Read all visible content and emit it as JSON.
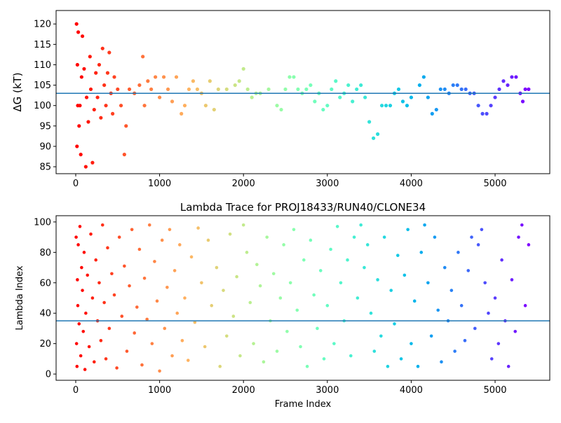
{
  "chart_data": [
    {
      "type": "scatter",
      "ylabel": "ΔG (kT)",
      "colormap": "rainbow_r",
      "xlim": [
        -234,
        5652
      ],
      "ylim": [
        83.3,
        123.3
      ],
      "xticks": [
        0,
        1000,
        2000,
        3000,
        4000,
        5000
      ],
      "yticks": [
        85,
        90,
        95,
        100,
        105,
        110,
        115,
        120
      ],
      "hline": {
        "value": 103,
        "color": "#1f77b4"
      },
      "x": [
        10,
        15,
        20,
        25,
        30,
        40,
        50,
        60,
        70,
        80,
        100,
        120,
        130,
        150,
        170,
        180,
        200,
        220,
        240,
        260,
        280,
        300,
        320,
        340,
        360,
        380,
        400,
        420,
        440,
        460,
        500,
        540,
        580,
        600,
        640,
        700,
        760,
        800,
        820,
        860,
        900,
        950,
        1000,
        1050,
        1100,
        1150,
        1200,
        1260,
        1300,
        1350,
        1400,
        1450,
        1500,
        1550,
        1600,
        1650,
        1700,
        1800,
        1900,
        1950,
        2000,
        2050,
        2100,
        2150,
        2200,
        2300,
        2400,
        2450,
        2500,
        2550,
        2600,
        2650,
        2700,
        2750,
        2800,
        2850,
        2900,
        2950,
        3000,
        3050,
        3100,
        3150,
        3200,
        3250,
        3300,
        3350,
        3400,
        3450,
        3500,
        3550,
        3600,
        3650,
        3700,
        3750,
        3800,
        3850,
        3900,
        3950,
        4000,
        4100,
        4150,
        4200,
        4250,
        4300,
        4350,
        4400,
        4450,
        4500,
        4550,
        4600,
        4650,
        4700,
        4750,
        4800,
        4850,
        4900,
        4950,
        5000,
        5050,
        5100,
        5150,
        5200,
        5250,
        5300,
        5330,
        5360,
        5400
      ],
      "values": [
        120,
        90,
        110,
        100,
        118,
        95,
        100,
        88,
        107,
        117,
        109,
        85,
        102,
        96,
        112,
        104,
        86,
        99,
        108,
        102,
        110,
        97,
        114,
        105,
        100,
        108,
        113,
        103,
        98,
        107,
        104,
        100,
        88,
        95,
        104,
        103,
        105,
        112,
        100,
        106,
        104,
        107,
        102,
        107,
        104,
        101,
        107,
        98,
        100,
        104,
        106,
        104,
        103,
        100,
        106,
        99,
        104,
        104,
        105,
        106,
        109,
        104,
        102,
        103,
        103,
        104,
        100,
        99,
        104,
        107,
        107,
        104,
        103,
        104,
        105,
        101,
        103,
        99,
        100,
        104,
        106,
        102,
        103,
        105,
        101,
        104,
        105,
        102,
        96,
        92,
        93,
        100,
        100,
        100,
        103,
        104,
        101,
        100,
        102,
        105,
        107,
        102,
        98,
        99,
        104,
        104,
        103,
        105,
        105,
        104,
        104,
        103,
        103,
        100,
        98,
        98,
        100,
        102,
        104,
        106,
        105,
        107,
        107,
        103,
        101,
        104,
        104
      ]
    },
    {
      "type": "scatter",
      "title": "Lambda Trace for PROJ18433/RUN40/CLONE34",
      "xlabel": "Frame Index",
      "ylabel": "Lambda Index",
      "colormap": "rainbow_r",
      "xlim": [
        -234,
        5652
      ],
      "ylim": [
        -4.1,
        104.1
      ],
      "xticks": [
        0,
        1000,
        2000,
        3000,
        4000,
        5000
      ],
      "yticks": [
        0,
        20,
        40,
        60,
        80,
        100
      ],
      "hline": {
        "value": 35,
        "color": "#1f77b4"
      },
      "x": [
        5,
        10,
        15,
        20,
        25,
        30,
        40,
        50,
        60,
        70,
        80,
        90,
        100,
        110,
        120,
        140,
        160,
        180,
        200,
        220,
        240,
        260,
        280,
        300,
        320,
        340,
        360,
        380,
        400,
        430,
        460,
        490,
        520,
        550,
        580,
        610,
        640,
        670,
        700,
        730,
        760,
        790,
        820,
        850,
        880,
        910,
        940,
        970,
        1000,
        1030,
        1060,
        1090,
        1120,
        1150,
        1180,
        1210,
        1240,
        1270,
        1300,
        1340,
        1380,
        1420,
        1460,
        1500,
        1540,
        1580,
        1620,
        1680,
        1720,
        1760,
        1800,
        1840,
        1880,
        1920,
        1960,
        2000,
        2040,
        2080,
        2120,
        2160,
        2200,
        2240,
        2280,
        2320,
        2360,
        2400,
        2440,
        2480,
        2520,
        2560,
        2600,
        2640,
        2680,
        2720,
        2760,
        2800,
        2840,
        2880,
        2920,
        2960,
        3000,
        3040,
        3080,
        3120,
        3160,
        3200,
        3240,
        3280,
        3320,
        3360,
        3400,
        3440,
        3480,
        3520,
        3560,
        3600,
        3640,
        3680,
        3720,
        3760,
        3800,
        3840,
        3880,
        3920,
        3960,
        4000,
        4040,
        4080,
        4120,
        4160,
        4200,
        4240,
        4280,
        4320,
        4360,
        4400,
        4440,
        4480,
        4520,
        4560,
        4600,
        4640,
        4680,
        4720,
        4760,
        4800,
        4840,
        4880,
        4920,
        4960,
        5000,
        5040,
        5080,
        5120,
        5160,
        5200,
        5240,
        5280,
        5320,
        5360,
        5400
      ],
      "values": [
        90,
        20,
        5,
        62,
        45,
        85,
        33,
        97,
        12,
        70,
        55,
        28,
        80,
        3,
        40,
        65,
        18,
        92,
        50,
        8,
        75,
        35,
        60,
        22,
        98,
        47,
        10,
        83,
        30,
        66,
        52,
        4,
        90,
        38,
        71,
        15,
        58,
        95,
        27,
        44,
        82,
        6,
        63,
        36,
        98,
        20,
        74,
        48,
        2,
        88,
        30,
        57,
        95,
        12,
        68,
        40,
        85,
        22,
        50,
        9,
        77,
        34,
        96,
        60,
        18,
        88,
        45,
        70,
        5,
        55,
        25,
        92,
        38,
        64,
        12,
        98,
        80,
        47,
        20,
        72,
        58,
        8,
        90,
        35,
        66,
        15,
        50,
        85,
        28,
        60,
        95,
        42,
        18,
        75,
        5,
        88,
        52,
        30,
        68,
        10,
        45,
        82,
        20,
        97,
        60,
        35,
        75,
        12,
        90,
        50,
        98,
        70,
        85,
        40,
        15,
        62,
        25,
        90,
        5,
        55,
        33,
        78,
        10,
        65,
        95,
        20,
        48,
        5,
        80,
        98,
        60,
        25,
        90,
        42,
        8,
        70,
        35,
        55,
        15,
        80,
        45,
        22,
        68,
        90,
        30,
        85,
        95,
        60,
        40,
        10,
        50,
        20,
        75,
        35,
        5,
        62,
        28,
        90,
        98,
        45,
        85
      ]
    }
  ]
}
